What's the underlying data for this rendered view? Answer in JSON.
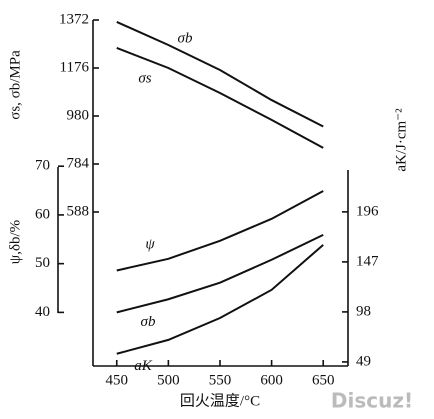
{
  "chart_data": {
    "type": "line",
    "xlabel": "回火温度/°C",
    "ylabel": "σs, σb/MPa",
    "y3label": "ψ,δb/%",
    "y2label": "aK/J·cm⁻²",
    "watermark": "Discuz!",
    "x": [
      450,
      500,
      550,
      600,
      650
    ],
    "xlim": [
      427,
      674
    ],
    "xticks": [
      450,
      500,
      550,
      600,
      650
    ],
    "ylim": [
      -41,
      1372
    ],
    "yticks": [
      588,
      784,
      980,
      1176,
      1372
    ],
    "y2lim": [
      45,
      384
    ],
    "y2ticks": [
      49,
      98,
      147,
      196
    ],
    "y3lim": [
      29,
      100
    ],
    "y3ticks": [
      40,
      50,
      60,
      70
    ],
    "series": [
      {
        "name": "σb",
        "color": "#111111",
        "axis": "y",
        "values": [
          1364,
          1270,
          1168,
          1045,
          937
        ]
      },
      {
        "name": "σs",
        "color": "#111111",
        "axis": "y",
        "values": [
          1258,
          1176,
          1074,
          964,
          850
        ]
      },
      {
        "name": "ψ",
        "color": "#111111",
        "axis": "y3",
        "values": [
          48.6,
          51,
          54.7,
          59.2,
          64.9
        ]
      },
      {
        "name": "σb",
        "color": "#111111",
        "axis": "y3",
        "values": [
          40,
          42.7,
          46.1,
          50.8,
          55.9
        ]
      },
      {
        "name": "aK",
        "color": "#111111",
        "axis": "y2",
        "values": [
          57,
          70.6,
          92,
          119.6,
          163.7
        ]
      }
    ]
  }
}
